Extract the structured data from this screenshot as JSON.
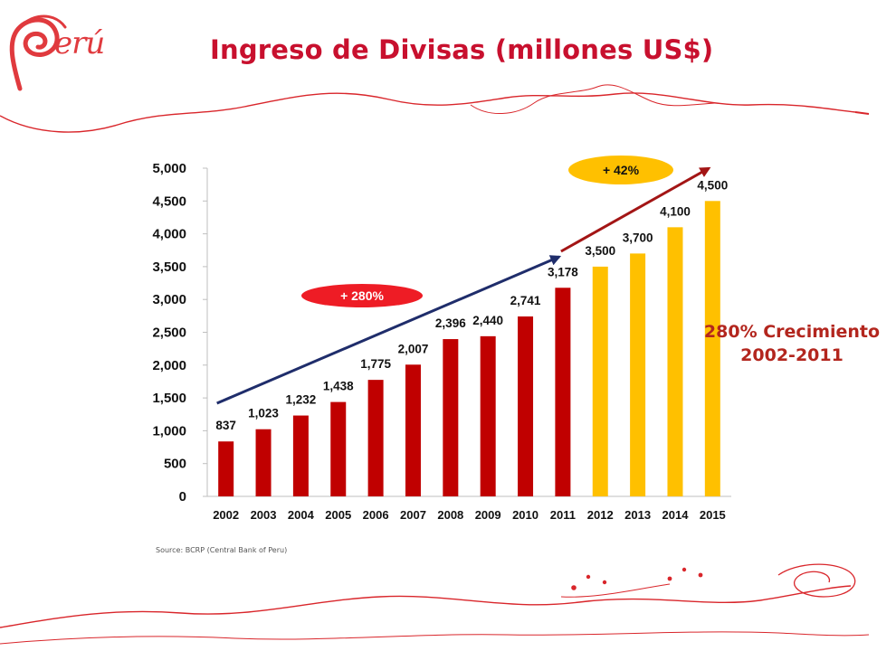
{
  "header": {
    "title": "Ingreso de Divisas (millones US$)",
    "logo_text": "erú"
  },
  "source_note": "Source: BCRP (Central Bank of Peru)",
  "growth_note": {
    "line1": "280% Crecimiento",
    "line2": "2002-2011"
  },
  "colors": {
    "title": "#c8102e",
    "bar_actual": "#c00000",
    "bar_projected": "#ffc000",
    "arrow_actual": "#1f2d6b",
    "arrow_projected": "#a31515",
    "badge_280": "#ee1c25",
    "badge_42": "#ffc000"
  },
  "chart_data": {
    "type": "bar",
    "title": "",
    "xlabel": "",
    "ylabel": "",
    "categories": [
      "2002",
      "2003",
      "2004",
      "2005",
      "2006",
      "2007",
      "2008",
      "2009",
      "2010",
      "2011",
      "2012",
      "2013",
      "2014",
      "2015"
    ],
    "values": [
      837,
      1023,
      1232,
      1438,
      1775,
      2007,
      2396,
      2440,
      2741,
      3178,
      3500,
      3700,
      4100,
      4500
    ],
    "value_labels": [
      "837",
      "1,023",
      "1,232",
      "1,438",
      "1,775",
      "2,007",
      "2,396",
      "2,440",
      "2,741",
      "3,178",
      "3,500",
      "3,700",
      "4,100",
      "4,500"
    ],
    "projected_from": "2012",
    "ylim": [
      0,
      5000
    ],
    "yticks": [
      0,
      500,
      1000,
      1500,
      2000,
      2500,
      3000,
      3500,
      4000,
      4500,
      5000
    ],
    "ytick_labels": [
      "0",
      "500",
      "1,000",
      "1,500",
      "2,000",
      "2,500",
      "3,000",
      "3,500",
      "4,000",
      "4,500",
      "5,000"
    ],
    "grid": false,
    "legend": "none",
    "annotations": [
      {
        "text": "+ 280%",
        "from": "2002",
        "to": "2011"
      },
      {
        "text": "+ 42%",
        "from": "2011",
        "to": "2015"
      }
    ]
  }
}
